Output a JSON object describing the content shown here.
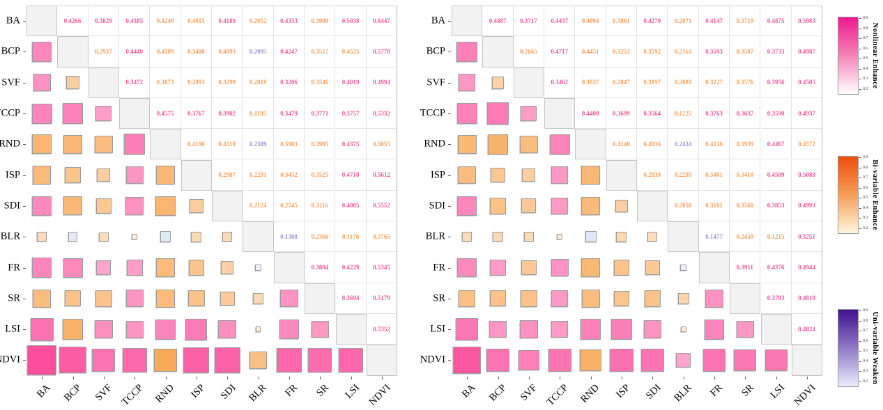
{
  "chart_data": {
    "type": "heatmap",
    "title": "",
    "variables": [
      "BA",
      "BCP",
      "SVF",
      "TCCP",
      "RND",
      "ISP",
      "SDI",
      "BLR",
      "FR",
      "SR",
      "LSI",
      "NDVI"
    ],
    "layout": {
      "upper_triangle": "interaction q-values as colored numbers",
      "lower_triangle": "squares sized and colored by the symmetric value",
      "diagonal": "gray blank cells"
    },
    "categories": {
      "p": {
        "label": "Nonlinear Enhance",
        "text_color": "#F05A9B",
        "square_color": "#FB4E9C"
      },
      "o": {
        "label": "Bi-variable Enhance",
        "text_color": "#F9A05A",
        "square_color": "#F89C3F"
      },
      "u": {
        "label": "Uni-variable Weaken",
        "text_color": "#9B97D4",
        "square_color": "#6F8FD2"
      }
    },
    "matrices": [
      {
        "name": "left",
        "rows": [
          {
            "name": "BA",
            "vals": [
              [
                "0.4266",
                "p"
              ],
              [
                "0.3829",
                "p"
              ],
              [
                "0.4385",
                "p"
              ],
              [
                "0.4249",
                "o"
              ],
              [
                "0.4015",
                "o"
              ],
              [
                "0.4189",
                "p"
              ],
              [
                "0.2052",
                "o"
              ],
              [
                "0.4333",
                "p"
              ],
              [
                "0.3900",
                "o"
              ],
              [
                "0.5038",
                "p"
              ],
              [
                "0.6447",
                "p"
              ]
            ]
          },
          {
            "name": "BCP",
            "vals": [
              [
                "0.2937",
                "o"
              ],
              [
                "0.4440",
                "p"
              ],
              [
                "0.4109",
                "o"
              ],
              [
                "0.3480",
                "o"
              ],
              [
                "0.4093",
                "o"
              ],
              [
                "0.2095",
                "u"
              ],
              [
                "0.4247",
                "p"
              ],
              [
                "0.3517",
                "o"
              ],
              [
                "0.4525",
                "o"
              ],
              [
                "0.5770",
                "p"
              ]
            ]
          },
          {
            "name": "SVF",
            "vals": [
              [
                "0.3472",
                "p"
              ],
              [
                "0.3873",
                "o"
              ],
              [
                "0.2893",
                "o"
              ],
              [
                "0.3299",
                "o"
              ],
              [
                "0.2019",
                "o"
              ],
              [
                "0.3206",
                "p"
              ],
              [
                "0.3546",
                "o"
              ],
              [
                "0.4019",
                "p"
              ],
              [
                "0.4994",
                "p"
              ]
            ]
          },
          {
            "name": "TCCP",
            "vals": [
              [
                "0.4575",
                "p"
              ],
              [
                "0.3767",
                "p"
              ],
              [
                "0.3902",
                "p"
              ],
              [
                "0.1195",
                "o"
              ],
              [
                "0.3479",
                "p"
              ],
              [
                "0.3771",
                "p"
              ],
              [
                "0.3757",
                "p"
              ],
              [
                "0.5332",
                "p"
              ]
            ]
          },
          {
            "name": "RND",
            "vals": [
              [
                "0.4190",
                "o"
              ],
              [
                "0.4318",
                "o"
              ],
              [
                "0.2389",
                "u"
              ],
              [
                "0.3983",
                "o"
              ],
              [
                "0.3985",
                "o"
              ],
              [
                "0.4375",
                "p"
              ],
              [
                "0.5055",
                "o"
              ]
            ]
          },
          {
            "name": "ISP",
            "vals": [
              [
                "0.2987",
                "o"
              ],
              [
                "0.2291",
                "o"
              ],
              [
                "0.3452",
                "o"
              ],
              [
                "0.3525",
                "o"
              ],
              [
                "0.4710",
                "p"
              ],
              [
                "0.5612",
                "p"
              ]
            ]
          },
          {
            "name": "SDI",
            "vals": [
              [
                "0.2124",
                "o"
              ],
              [
                "0.2745",
                "o"
              ],
              [
                "0.3116",
                "o"
              ],
              [
                "0.4005",
                "p"
              ],
              [
                "0.5552",
                "p"
              ]
            ]
          },
          {
            "name": "BLR",
            "vals": [
              [
                "0.1308",
                "u"
              ],
              [
                "0.2366",
                "o"
              ],
              [
                "0.1176",
                "o"
              ],
              [
                "0.3765",
                "o"
              ]
            ]
          },
          {
            "name": "FR",
            "vals": [
              [
                "0.3804",
                "p"
              ],
              [
                "0.4229",
                "p"
              ],
              [
                "0.5345",
                "p"
              ]
            ]
          },
          {
            "name": "SR",
            "vals": [
              [
                "0.3694",
                "p"
              ],
              [
                "0.5179",
                "p"
              ]
            ]
          },
          {
            "name": "LSI",
            "vals": [
              [
                "0.5352",
                "p"
              ]
            ]
          },
          {
            "name": "NDVI",
            "vals": []
          }
        ]
      },
      {
        "name": "right",
        "rows": [
          {
            "name": "BA",
            "vals": [
              [
                "0.4487",
                "p"
              ],
              [
                "0.3717",
                "p"
              ],
              [
                "0.4437",
                "p"
              ],
              [
                "0.4094",
                "o"
              ],
              [
                "0.3861",
                "o"
              ],
              [
                "0.4270",
                "p"
              ],
              [
                "0.2071",
                "o"
              ],
              [
                "0.4147",
                "p"
              ],
              [
                "0.3719",
                "o"
              ],
              [
                "0.4875",
                "p"
              ],
              [
                "0.5983",
                "p"
              ]
            ]
          },
          {
            "name": "BCP",
            "vals": [
              [
                "0.2665",
                "o"
              ],
              [
                "0.4717",
                "p"
              ],
              [
                "0.4451",
                "o"
              ],
              [
                "0.3252",
                "o"
              ],
              [
                "0.3592",
                "o"
              ],
              [
                "0.2163",
                "o"
              ],
              [
                "0.3593",
                "p"
              ],
              [
                "0.3507",
                "o"
              ],
              [
                "0.3733",
                "p"
              ],
              [
                "0.4987",
                "p"
              ]
            ]
          },
          {
            "name": "SVF",
            "vals": [
              [
                "0.3462",
                "p"
              ],
              [
                "0.3837",
                "o"
              ],
              [
                "0.2847",
                "o"
              ],
              [
                "0.3197",
                "o"
              ],
              [
                "0.2083",
                "o"
              ],
              [
                "0.3227",
                "o"
              ],
              [
                "0.3576",
                "o"
              ],
              [
                "0.3956",
                "p"
              ],
              [
                "0.4505",
                "p"
              ]
            ]
          },
          {
            "name": "TCCP",
            "vals": [
              [
                "0.4408",
                "p"
              ],
              [
                "0.3699",
                "p"
              ],
              [
                "0.3564",
                "p"
              ],
              [
                "0.1225",
                "o"
              ],
              [
                "0.3763",
                "p"
              ],
              [
                "0.3637",
                "p"
              ],
              [
                "0.3590",
                "p"
              ],
              [
                "0.4937",
                "p"
              ]
            ]
          },
          {
            "name": "RND",
            "vals": [
              [
                "0.4140",
                "o"
              ],
              [
                "0.4036",
                "o"
              ],
              [
                "0.2434",
                "u"
              ],
              [
                "0.4156",
                "o"
              ],
              [
                "0.3939",
                "o"
              ],
              [
                "0.4467",
                "p"
              ],
              [
                "0.4572",
                "o"
              ]
            ]
          },
          {
            "name": "ISP",
            "vals": [
              [
                "0.2839",
                "o"
              ],
              [
                "0.2295",
                "o"
              ],
              [
                "0.3461",
                "o"
              ],
              [
                "0.3410",
                "o"
              ],
              [
                "0.4509",
                "p"
              ],
              [
                "0.5088",
                "p"
              ]
            ]
          },
          {
            "name": "SDI",
            "vals": [
              [
                "0.2058",
                "o"
              ],
              [
                "0.3181",
                "o"
              ],
              [
                "0.3560",
                "o"
              ],
              [
                "0.3853",
                "p"
              ],
              [
                "0.4993",
                "p"
              ]
            ]
          },
          {
            "name": "BLR",
            "vals": [
              [
                "0.1477",
                "u"
              ],
              [
                "0.2459",
                "o"
              ],
              [
                "0.1215",
                "o"
              ],
              [
                "0.3251",
                "p"
              ]
            ]
          },
          {
            "name": "FR",
            "vals": [
              [
                "0.3911",
                "p"
              ],
              [
                "0.4376",
                "p"
              ],
              [
                "0.4944",
                "p"
              ]
            ]
          },
          {
            "name": "SR",
            "vals": [
              [
                "0.3703",
                "p"
              ],
              [
                "0.4818",
                "p"
              ]
            ]
          },
          {
            "name": "LSI",
            "vals": [
              [
                "0.4824",
                "p"
              ]
            ]
          },
          {
            "name": "NDVI",
            "vals": []
          }
        ]
      }
    ],
    "colorbars": [
      {
        "label": "Nonlinear Enhance",
        "ticks": [
          "0.9",
          "0.8",
          "0.7",
          "0.6",
          "0.5",
          "0.4",
          "0.3",
          "0.2"
        ],
        "gradient": [
          "#EF1A8F",
          "#F57FB4",
          "#FFFFFF"
        ]
      },
      {
        "label": "Bi-variable Enhance",
        "ticks": [
          "0.9",
          "0.8",
          "0.7",
          "0.6",
          "0.5",
          "0.4",
          "0.3",
          "0.2"
        ],
        "gradient": [
          "#EA4E0B",
          "#F79A55",
          "#FFF6DF"
        ]
      },
      {
        "label": "Uni-variable Weaken",
        "ticks": [
          "0.9",
          "0.8",
          "0.7",
          "0.6",
          "0.5",
          "0.4",
          "0.3",
          "0.2"
        ],
        "gradient": [
          "#411190",
          "#8D74C5",
          "#E9EDFB"
        ]
      }
    ]
  }
}
